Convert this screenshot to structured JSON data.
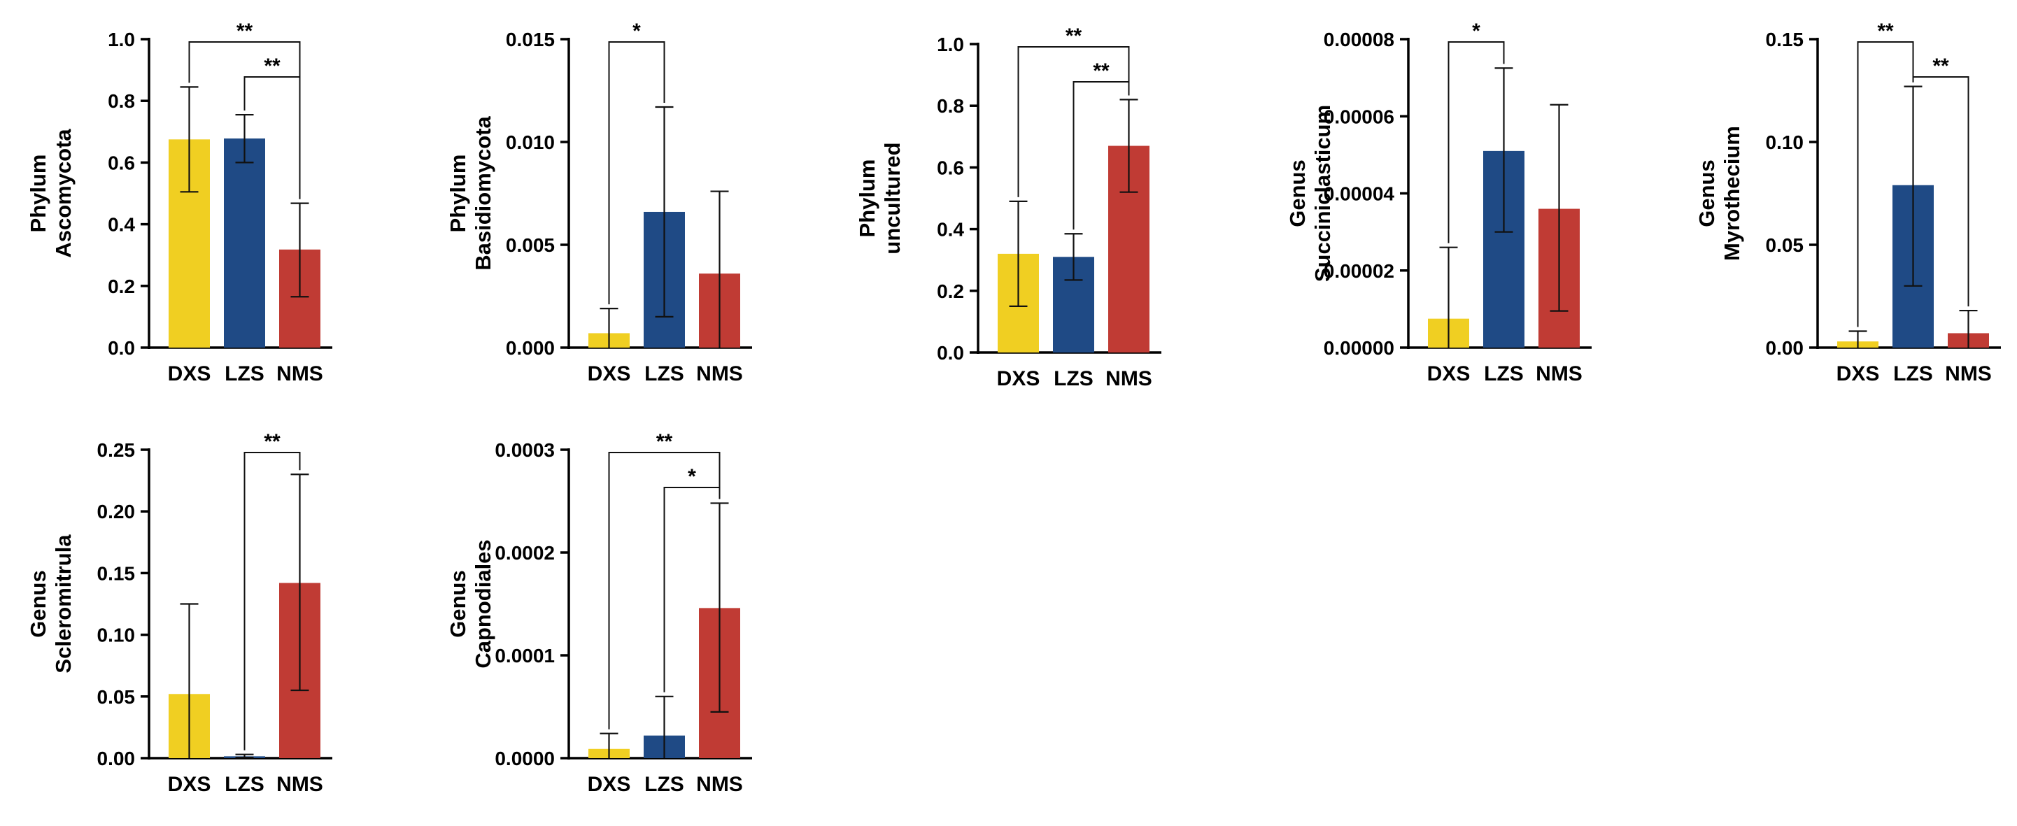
{
  "figure": {
    "colors": {
      "DXS": "#F0CF22",
      "LZS": "#1F4A85",
      "NMS": "#C03B34",
      "axis": "#000000"
    },
    "chart_data": [
      {
        "type": "bar",
        "ylabel": [
          "Phylum",
          "Ascomycota"
        ],
        "categories": [
          "DXS",
          "LZS",
          "NMS"
        ],
        "values": [
          0.675,
          0.678,
          0.318
        ],
        "error_upper": [
          0.845,
          0.755,
          0.468
        ],
        "error_lower": [
          0.505,
          0.6,
          0.165
        ],
        "ylim": [
          0,
          1.0
        ],
        "yticks": [
          0,
          0.2,
          0.4,
          0.6,
          0.8,
          1.0
        ],
        "ytick_labels": [
          "0.0",
          "0.2",
          "0.4",
          "0.6",
          "0.8",
          "1.0"
        ],
        "significance": [
          {
            "from": 0,
            "to": 2,
            "label": "**"
          },
          {
            "from": 1,
            "to": 2,
            "label": "**"
          }
        ]
      },
      {
        "type": "bar",
        "ylabel": [
          "Phylum",
          "Basidiomycota"
        ],
        "categories": [
          "DXS",
          "LZS",
          "NMS"
        ],
        "values": [
          0.0007,
          0.0066,
          0.0036
        ],
        "error_upper": [
          0.0019,
          0.0117,
          0.0076
        ],
        "error_lower": [
          0.0,
          0.0015,
          0.0
        ],
        "ylim": [
          0,
          0.015
        ],
        "yticks": [
          0,
          0.005,
          0.01,
          0.015
        ],
        "ytick_labels": [
          "0.000",
          "0.005",
          "0.010",
          "0.015"
        ],
        "significance": [
          {
            "from": 0,
            "to": 1,
            "label": "*"
          }
        ]
      },
      {
        "type": "bar",
        "ylabel": [
          "Phylum",
          "uncultured"
        ],
        "categories": [
          "DXS",
          "LZS",
          "NMS"
        ],
        "values": [
          0.32,
          0.31,
          0.67
        ],
        "error_upper": [
          0.49,
          0.385,
          0.82
        ],
        "error_lower": [
          0.15,
          0.235,
          0.52
        ],
        "ylim": [
          0,
          1.0
        ],
        "yticks": [
          0,
          0.2,
          0.4,
          0.6,
          0.8,
          1.0
        ],
        "ytick_labels": [
          "0.0",
          "0.2",
          "0.4",
          "0.6",
          "0.8",
          "1.0"
        ],
        "significance": [
          {
            "from": 0,
            "to": 2,
            "label": "**"
          },
          {
            "from": 1,
            "to": 2,
            "label": "**"
          }
        ]
      },
      {
        "type": "bar",
        "ylabel": [
          "Genus",
          "Succiniclasticum"
        ],
        "categories": [
          "DXS",
          "LZS",
          "NMS"
        ],
        "values": [
          7.5e-06,
          5.1e-05,
          3.6e-05
        ],
        "error_upper": [
          2.6e-05,
          7.25e-05,
          6.3e-05
        ],
        "error_lower": [
          0.0,
          3e-05,
          9.5e-06
        ],
        "ylim": [
          0,
          8e-05
        ],
        "yticks": [
          0,
          2e-05,
          4e-05,
          6e-05,
          8e-05
        ],
        "ytick_labels": [
          "0.00000",
          "0.00002",
          "0.00004",
          "0.00006",
          "0.00008"
        ],
        "significance": [
          {
            "from": 0,
            "to": 1,
            "label": "*"
          }
        ]
      },
      {
        "type": "bar",
        "ylabel": [
          "Genus",
          "Myrothecium"
        ],
        "categories": [
          "DXS",
          "LZS",
          "NMS"
        ],
        "values": [
          0.003,
          0.079,
          0.007
        ],
        "error_upper": [
          0.008,
          0.127,
          0.018
        ],
        "error_lower": [
          0.0,
          0.03,
          0.0
        ],
        "ylim": [
          0,
          0.15
        ],
        "yticks": [
          0,
          0.05,
          0.1,
          0.15
        ],
        "ytick_labels": [
          "0.00",
          "0.05",
          "0.10",
          "0.15"
        ],
        "significance": [
          {
            "from": 0,
            "to": 1,
            "label": "**"
          },
          {
            "from": 1,
            "to": 2,
            "label": "**"
          }
        ]
      },
      {
        "type": "bar",
        "ylabel": [
          "Genus",
          "Scleromitrula"
        ],
        "categories": [
          "DXS",
          "LZS",
          "NMS"
        ],
        "values": [
          0.052,
          0.0015,
          0.142
        ],
        "error_upper": [
          0.125,
          0.003,
          0.23
        ],
        "error_lower": [
          0.0,
          0.0005,
          0.055
        ],
        "ylim": [
          0,
          0.25
        ],
        "yticks": [
          0,
          0.05,
          0.1,
          0.15,
          0.2,
          0.25
        ],
        "ytick_labels": [
          "0.00",
          "0.05",
          "0.10",
          "0.15",
          "0.20",
          "0.25"
        ],
        "significance": [
          {
            "from": 1,
            "to": 2,
            "label": "**"
          }
        ]
      },
      {
        "type": "bar",
        "ylabel": [
          "Genus",
          "Capnodiales"
        ],
        "categories": [
          "DXS",
          "LZS",
          "NMS"
        ],
        "values": [
          9e-06,
          2.2e-05,
          0.000146
        ],
        "error_upper": [
          2.4e-05,
          6e-05,
          0.000248
        ],
        "error_lower": [
          0.0,
          0.0,
          4.5e-05
        ],
        "ylim": [
          0,
          0.0003
        ],
        "yticks": [
          0,
          0.0001,
          0.0002,
          0.0003
        ],
        "ytick_labels": [
          "0.0000",
          "0.0001",
          "0.0002",
          "0.0003"
        ],
        "significance": [
          {
            "from": 0,
            "to": 2,
            "label": "**"
          },
          {
            "from": 1,
            "to": 2,
            "label": "*"
          }
        ]
      }
    ]
  }
}
